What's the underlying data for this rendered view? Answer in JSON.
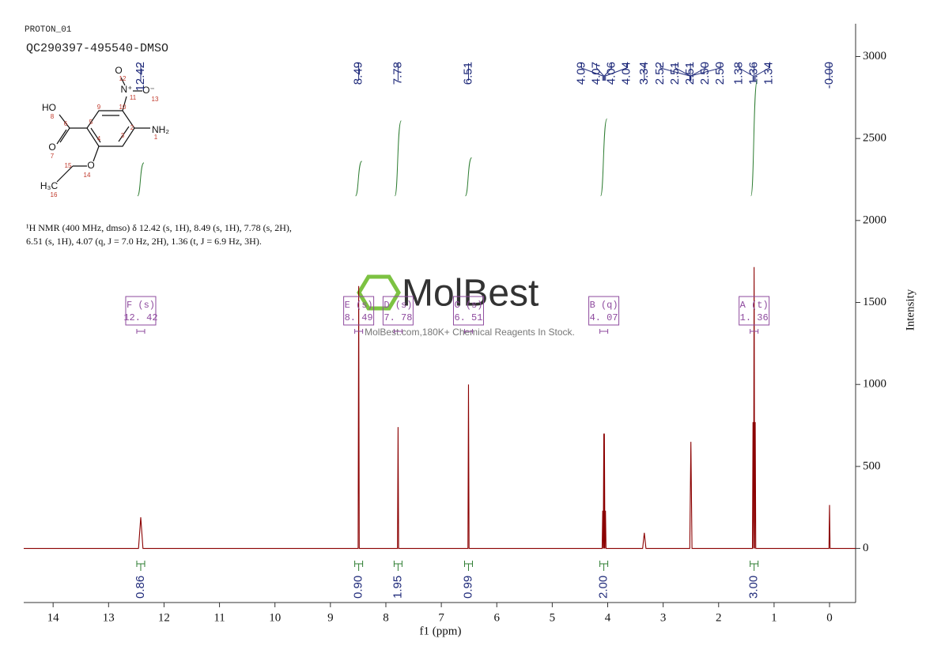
{
  "header": {
    "experiment": "PROTON_01",
    "sample": "QC290397-495540-DMSO"
  },
  "description": [
    "¹H NMR (400 MHz, dmso) δ 12.42 (s, 1H), 8.49 (s, 1H), 7.78 (s, 2H),",
    "6.51 (s, 1H), 4.07 (q, J = 7.0 Hz, 2H), 1.36 (t, J = 6.9 Hz, 3H)."
  ],
  "structure": {
    "atoms": [
      "HO",
      "O",
      "O",
      "N⁺",
      "O⁻",
      "NH₂",
      "O",
      "H₃C"
    ],
    "numbers": [
      1,
      2,
      3,
      4,
      5,
      6,
      7,
      8,
      9,
      10,
      11,
      12,
      13,
      14,
      15,
      16
    ]
  },
  "watermark": {
    "brand": "MolBest",
    "tagline": "MolBest.com,180K+ Chemical Reagents In Stock."
  },
  "chart_data": {
    "type": "line",
    "x_label": "f1 (ppm)",
    "y_label": "Intensity",
    "color": "#8b0000",
    "xlim": [
      14.53,
      -0.47
    ],
    "ylim": [
      -330,
      3200
    ],
    "xticks": [
      14,
      13,
      12,
      11,
      10,
      9,
      8,
      7,
      6,
      5,
      4,
      3,
      2,
      1,
      0
    ],
    "yticks": [
      0,
      500,
      1000,
      1500,
      2000,
      2500,
      3000
    ],
    "x": [
      14.53,
      12.46,
      12.42,
      12.38,
      8.5,
      8.49,
      8.48,
      7.79,
      7.78,
      7.77,
      6.52,
      6.51,
      6.5,
      4.1,
      4.09,
      4.08,
      4.07,
      4.065,
      4.06,
      4.05,
      4.04,
      4.03,
      3.37,
      3.34,
      3.31,
      2.52,
      2.5,
      2.48,
      1.39,
      1.38,
      1.37,
      1.36,
      1.35,
      1.34,
      1.33,
      0.01,
      0,
      -0.01,
      -0.47
    ],
    "values": [
      0,
      0,
      190,
      0,
      0,
      1600,
      0,
      0,
      740,
      0,
      0,
      1000,
      0,
      0,
      230,
      0,
      700,
      0,
      700,
      0,
      230,
      0,
      0,
      95,
      0,
      0,
      650,
      0,
      0,
      770,
      0,
      1716,
      0,
      770,
      0,
      0,
      265,
      0,
      0
    ],
    "peak_labels": {
      "values": [
        12.42,
        8.49,
        7.78,
        6.51,
        4.09,
        4.07,
        4.06,
        4.04,
        3.34,
        2.52,
        2.51,
        2.51,
        2.5,
        2.5,
        1.38,
        1.36,
        1.34,
        0
      ],
      "value_labels": [
        "12.42",
        "8.49",
        "7.78",
        "6.51",
        "4.09",
        "4.07",
        "4.06",
        "4.04",
        "3.34",
        "2.52",
        "2.51",
        "2.51",
        "2.50",
        "2.50",
        "1.38",
        "1.36",
        "1.34",
        "-0.00"
      ]
    },
    "multiplets": {
      "names": [
        "F (s)",
        "E (s)",
        "D (s)",
        "C (s)",
        "B (q)",
        "A (t)"
      ],
      "values": [
        12.42,
        8.49,
        7.78,
        6.51,
        4.07,
        1.36
      ],
      "value_labels": [
        "12. 42",
        "8. 49",
        "7. 78",
        "6. 51",
        "4. 07",
        "1. 36"
      ]
    },
    "integrals": {
      "x": [
        12.42,
        8.49,
        7.78,
        6.51,
        4.07,
        1.36
      ],
      "values": [
        0.86,
        0.9,
        1.95,
        0.99,
        2,
        3
      ],
      "value_labels": [
        "0.86",
        "0.90",
        "1.95",
        "0.99",
        "2.00",
        "3.00"
      ]
    }
  }
}
